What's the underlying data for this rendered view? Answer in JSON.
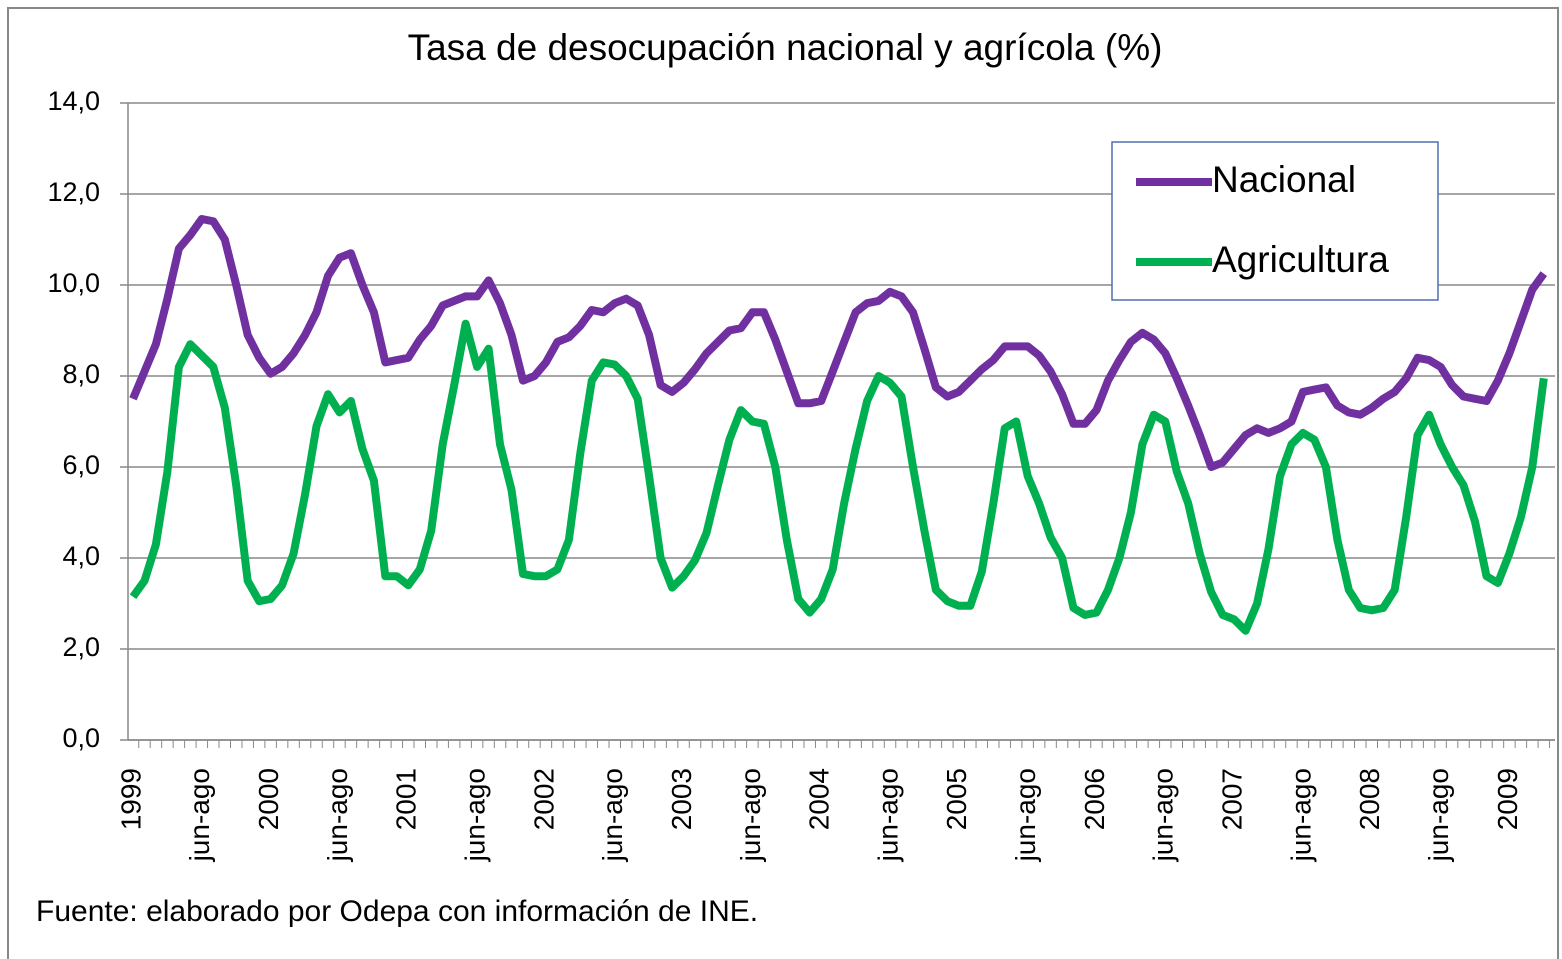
{
  "chart_data": {
    "type": "line",
    "title": "Tasa de desocupación nacional y agrícola (%)",
    "footnote": "Fuente: elaborado por Odepa con información de INE.",
    "categories": [
      "1999",
      null,
      null,
      null,
      null,
      null,
      "jun-ago",
      null,
      null,
      null,
      null,
      null,
      "2000",
      null,
      null,
      null,
      null,
      null,
      "jun-ago",
      null,
      null,
      null,
      null,
      null,
      "2001",
      null,
      null,
      null,
      null,
      null,
      "jun-ago",
      null,
      null,
      null,
      null,
      null,
      "2002",
      null,
      null,
      null,
      null,
      null,
      "jun-ago",
      null,
      null,
      null,
      null,
      null,
      "2003",
      null,
      null,
      null,
      null,
      null,
      "jun-ago",
      null,
      null,
      null,
      null,
      null,
      "2004",
      null,
      null,
      null,
      null,
      null,
      "jun-ago",
      null,
      null,
      null,
      null,
      null,
      "2005",
      null,
      null,
      null,
      null,
      null,
      "jun-ago",
      null,
      null,
      null,
      null,
      null,
      "2006",
      null,
      null,
      null,
      null,
      null,
      "jun-ago",
      null,
      null,
      null,
      null,
      null,
      "2007",
      null,
      null,
      null,
      null,
      null,
      "jun-ago",
      null,
      null,
      null,
      null,
      null,
      "2008",
      null,
      null,
      null,
      null,
      null,
      "jun-ago",
      null,
      null,
      null,
      null,
      null,
      "2009",
      null,
      null,
      null
    ],
    "series": [
      {
        "name": "Nacional",
        "color": "#7030a0",
        "values": [
          7.5,
          8.1,
          8.7,
          9.7,
          10.8,
          11.1,
          11.45,
          11.4,
          11.0,
          10.0,
          8.9,
          8.4,
          8.05,
          8.2,
          8.5,
          8.9,
          9.4,
          10.2,
          10.6,
          10.7,
          10.0,
          9.4,
          8.3,
          8.35,
          8.4,
          8.8,
          9.1,
          9.55,
          9.65,
          9.75,
          9.75,
          10.1,
          9.6,
          8.9,
          7.9,
          8.0,
          8.3,
          8.75,
          8.85,
          9.1,
          9.45,
          9.4,
          9.6,
          9.7,
          9.55,
          8.9,
          7.8,
          7.65,
          7.85,
          8.15,
          8.5,
          8.75,
          9.0,
          9.05,
          9.4,
          9.4,
          8.8,
          8.1,
          7.4,
          7.4,
          7.45,
          8.1,
          8.75,
          9.4,
          9.6,
          9.65,
          9.85,
          9.75,
          9.4,
          8.6,
          7.75,
          7.55,
          7.65,
          7.9,
          8.15,
          8.35,
          8.65,
          8.65,
          8.65,
          8.45,
          8.1,
          7.6,
          6.95,
          6.95,
          7.25,
          7.9,
          8.35,
          8.75,
          8.95,
          8.8,
          8.5,
          7.95,
          7.35,
          6.7,
          6.0,
          6.1,
          6.4,
          6.7,
          6.85,
          6.75,
          6.85,
          7.0,
          7.65,
          7.7,
          7.75,
          7.35,
          7.2,
          7.15,
          7.3,
          7.5,
          7.65,
          7.95,
          8.4,
          8.35,
          8.2,
          7.8,
          7.55,
          7.5,
          7.45,
          7.9,
          8.5,
          9.2,
          9.9,
          10.25
        ]
      },
      {
        "name": "Agricultura",
        "color": "#00b050",
        "values": [
          3.15,
          3.5,
          4.3,
          5.9,
          8.2,
          8.7,
          8.45,
          8.2,
          7.3,
          5.6,
          3.5,
          3.05,
          3.1,
          3.4,
          4.1,
          5.4,
          6.9,
          7.6,
          7.2,
          7.45,
          6.4,
          5.7,
          3.6,
          3.6,
          3.4,
          3.75,
          4.6,
          6.5,
          7.8,
          9.15,
          8.2,
          8.6,
          6.5,
          5.5,
          3.65,
          3.6,
          3.6,
          3.75,
          4.4,
          6.3,
          7.9,
          8.3,
          8.25,
          8.0,
          7.5,
          5.8,
          4.0,
          3.35,
          3.6,
          3.95,
          4.55,
          5.6,
          6.6,
          7.25,
          7.0,
          6.95,
          6.0,
          4.4,
          3.1,
          2.8,
          3.1,
          3.75,
          5.2,
          6.4,
          7.45,
          8.0,
          7.85,
          7.55,
          6.0,
          4.6,
          3.3,
          3.05,
          2.95,
          2.95,
          3.7,
          5.2,
          6.85,
          7.0,
          5.8,
          5.2,
          4.45,
          4.0,
          2.9,
          2.75,
          2.8,
          3.3,
          4.0,
          5.0,
          6.5,
          7.15,
          7.0,
          5.9,
          5.2,
          4.1,
          3.25,
          2.75,
          2.65,
          2.4,
          3.0,
          4.2,
          5.8,
          6.5,
          6.75,
          6.6,
          6.0,
          4.4,
          3.3,
          2.9,
          2.85,
          2.9,
          3.3,
          4.9,
          6.7,
          7.15,
          6.5,
          6.0,
          5.6,
          4.8,
          3.6,
          3.45,
          4.1,
          4.9,
          6.0,
          7.95
        ]
      }
    ],
    "ylim": [
      0,
      14
    ],
    "yticks": [
      {
        "value": 0,
        "label": "0,0"
      },
      {
        "value": 2,
        "label": "2,0"
      },
      {
        "value": 4,
        "label": "4,0"
      },
      {
        "value": 6,
        "label": "6,0"
      },
      {
        "value": 8,
        "label": "8,0"
      },
      {
        "value": 10,
        "label": "10,0"
      },
      {
        "value": 12,
        "label": "12,0"
      },
      {
        "value": 14,
        "label": "14,0"
      }
    ],
    "grid": true,
    "legend": "upper right"
  }
}
